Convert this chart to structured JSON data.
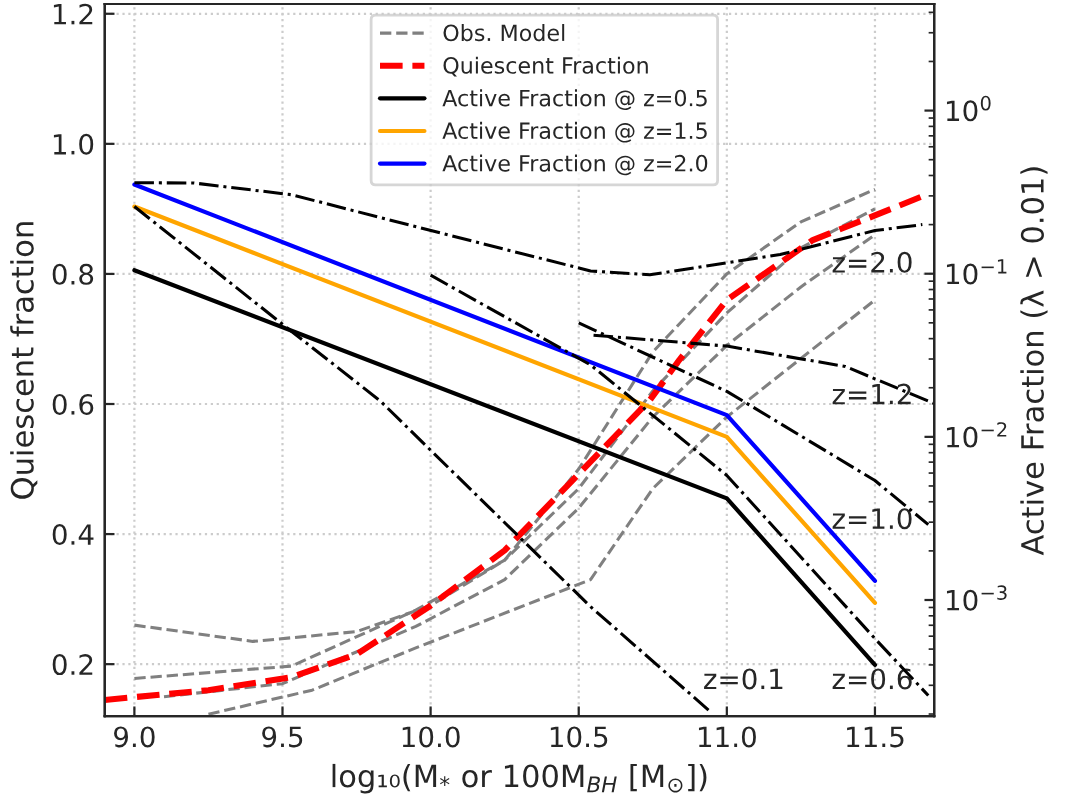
{
  "chart_data": {
    "type": "line",
    "xlabel": "log₁₀(M$_{*}$ or 100M$_{BH}$ [M$_{⊙}$])",
    "ylabel": "Quiescent fraction",
    "y2label": "Active Fraction (λ > 0.01)",
    "xlim": [
      8.9,
      11.7
    ],
    "xticks": [
      {
        "value": 9,
        "label": "9.0"
      },
      9.5,
      {
        "value": 10,
        "label": "10.0"
      },
      10.5,
      {
        "value": 11,
        "label": "11.0"
      },
      11.5
    ],
    "ylim": [
      0.12,
      1.215
    ],
    "yticks": [
      0.2,
      0.4,
      0.6,
      0.8,
      {
        "value": 1,
        "label": "1.0"
      },
      1.2
    ],
    "y2lim": [
      0.000194,
      4.5
    ],
    "y2ticks": [
      {
        "value": 0.001,
        "label": "10$^{−3}$"
      },
      {
        "value": 0.01,
        "label": "10$^{−2}$"
      },
      {
        "value": 0.1,
        "label": "10$^{−1}$"
      },
      {
        "value": 1,
        "label": "10$^{0}$"
      }
    ],
    "log": "y2",
    "grid": true,
    "legend": "top",
    "series": [
      {
        "name": "Obs. Model",
        "color": "#808080",
        "line_style": "dashed",
        "x": [
          9.0,
          9.4,
          9.75,
          10.0,
          10.25,
          10.5,
          10.75,
          11.0,
          11.25,
          11.5
        ],
        "values": [
          0.26,
          0.235,
          0.25,
          0.29,
          0.36,
          0.5,
          0.68,
          0.8,
          0.88,
          0.93
        ]
      },
      {
        "color": "#808080",
        "line_style": "dashed",
        "x": [
          9.0,
          9.53,
          9.95,
          10.25,
          10.5,
          10.75,
          11.0,
          11.25,
          11.5
        ],
        "values": [
          0.178,
          0.197,
          0.283,
          0.36,
          0.47,
          0.62,
          0.74,
          0.84,
          0.9
        ]
      },
      {
        "color": "#808080",
        "line_style": "dashed",
        "x": [
          9.1,
          9.5,
          9.95,
          10.25,
          10.5,
          10.75,
          11.0,
          11.25,
          11.5
        ],
        "values": [
          0.15,
          0.17,
          0.258,
          0.33,
          0.44,
          0.58,
          0.69,
          0.78,
          0.86
        ]
      },
      {
        "color": "#808080",
        "line_style": "dashed",
        "x": [
          9.25,
          9.6,
          9.95,
          10.54,
          10.75,
          11.0,
          11.25,
          11.5
        ],
        "values": [
          0.123,
          0.16,
          0.225,
          0.33,
          0.47,
          0.58,
          0.67,
          0.76
        ]
      },
      {
        "name": "Quiescent Fraction",
        "color": "#ff0000",
        "line_style": "dashed",
        "x": [
          8.9,
          9.25,
          9.53,
          9.75,
          10.0,
          10.25,
          10.48,
          10.74,
          10.84,
          11.0,
          11.29,
          11.5,
          11.68
        ],
        "values": [
          0.145,
          0.16,
          0.18,
          0.215,
          0.29,
          0.375,
          0.483,
          0.606,
          0.668,
          0.76,
          0.852,
          0.89,
          0.923
        ]
      },
      {
        "name": "Active Fraction @ z=0.5",
        "color": "#000000",
        "line_style": "solid",
        "axis": "y2",
        "x": [
          9.0,
          11.0,
          11.5
        ],
        "values": [
          0.105,
          0.0042,
          0.0004
        ]
      },
      {
        "name": "Active Fraction @ z=1.5",
        "color": "#ffa500",
        "line_style": "solid",
        "axis": "y2",
        "x": [
          9.0,
          11.0,
          11.5
        ],
        "values": [
          0.258,
          0.01,
          0.00096
        ]
      },
      {
        "name": "Active Fraction @ z=2.0",
        "color": "#0000ff",
        "line_style": "solid",
        "axis": "y2",
        "x": [
          9.0,
          11.0,
          11.5
        ],
        "values": [
          0.352,
          0.0136,
          0.00131
        ]
      },
      {
        "color": "#000000",
        "line_style": "dashdot",
        "axis": "y2",
        "x": [
          9.0,
          9.2,
          9.53,
          10.08,
          10.54,
          10.74,
          11.18,
          11.5,
          11.66
        ],
        "values": [
          0.361,
          0.36,
          0.305,
          0.169,
          0.104,
          0.0986,
          0.131,
          0.184,
          0.2
        ]
      },
      {
        "color": "#000000",
        "line_style": "dashdot",
        "axis": "y2",
        "x": [
          10.55,
          11.0,
          11.4,
          11.7
        ],
        "values": [
          0.042,
          0.036,
          0.027,
          0.016
        ]
      },
      {
        "color": "#000000",
        "line_style": "dashdot",
        "axis": "y2",
        "x": [
          10.5,
          11.0,
          11.5,
          11.68
        ],
        "values": [
          0.05,
          0.019,
          0.0054,
          0.0029
        ]
      },
      {
        "color": "#000000",
        "line_style": "dashdot",
        "axis": "y2",
        "x": [
          10.0,
          10.54,
          11.0,
          11.5,
          11.68
        ],
        "values": [
          0.098,
          0.0276,
          0.0058,
          0.00058,
          0.00026
        ]
      },
      {
        "color": "#000000",
        "line_style": "dashdot",
        "axis": "y2",
        "x": [
          9.0,
          9.5,
          9.83,
          10.54,
          10.94
        ],
        "values": [
          0.258,
          0.049,
          0.0166,
          0.00091,
          0.00021
        ]
      }
    ],
    "annotations": [
      "z=2.0",
      "z=1.2",
      "z=1.0",
      "z=0.6",
      "z=0.1"
    ]
  }
}
